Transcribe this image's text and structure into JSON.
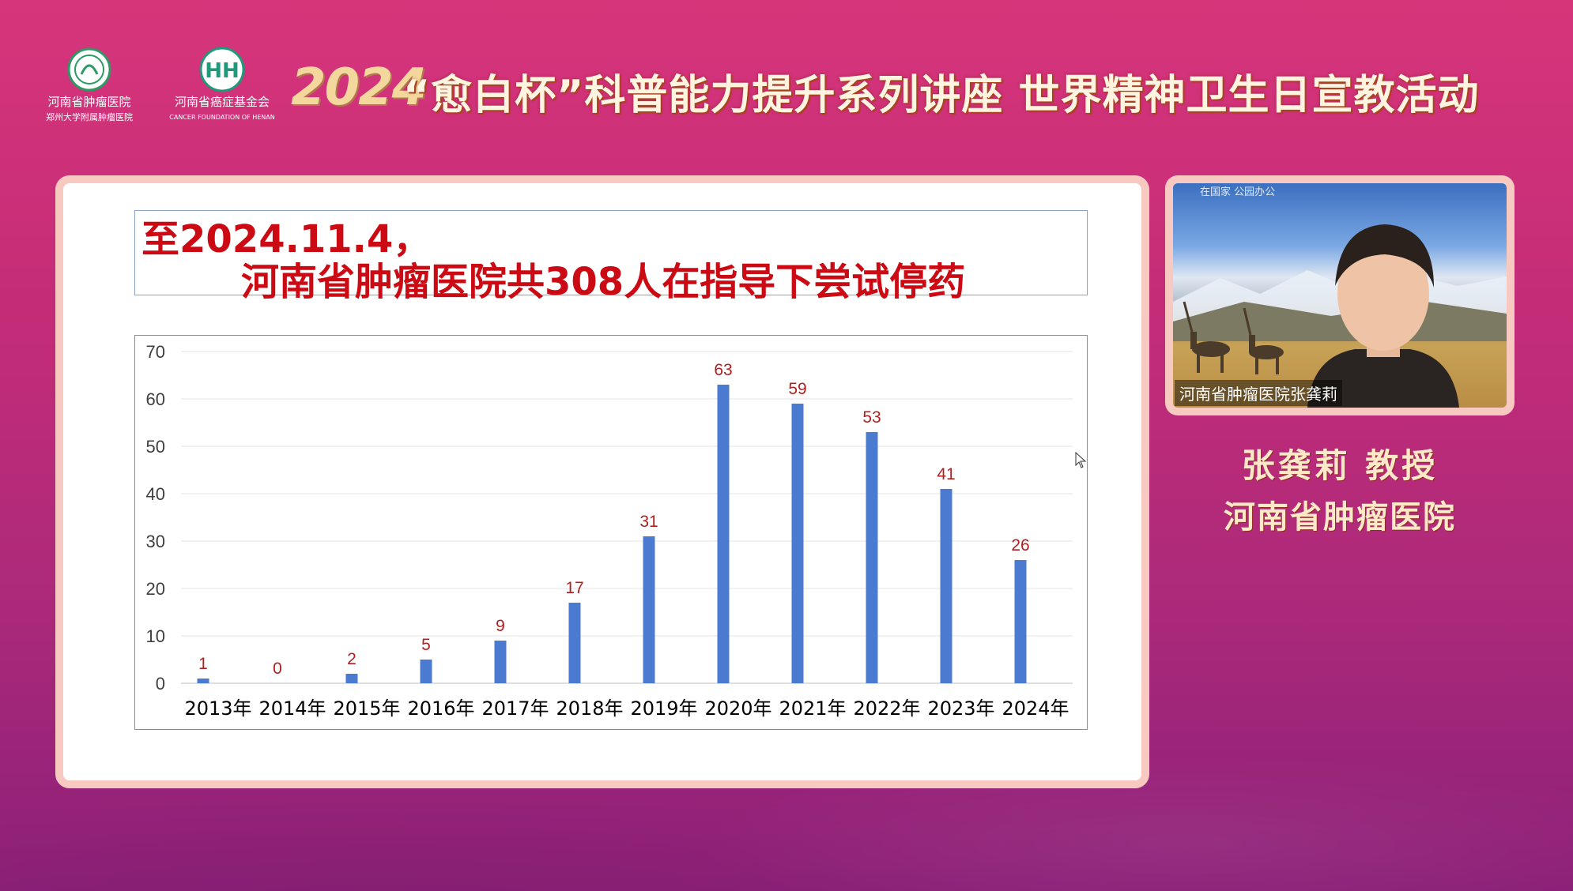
{
  "header": {
    "logo_hospital_text": "河南省肿瘤医院",
    "logo_hospital_sub": "郑州大学附属肿瘤医院",
    "logo_foundation_text": "河南省癌症基金会",
    "logo_foundation_sub": "CANCER FOUNDATION OF HENAN",
    "year": "2024",
    "title": "“愈白杯”科普能力提升系列讲座 世界精神卫生日宣教活动"
  },
  "slide": {
    "headline_line1": "至2024.11.4，",
    "headline_line2": "河南省肿瘤医院共308人在指导下尝试停药"
  },
  "chart_data": {
    "type": "bar",
    "title": "",
    "xlabel": "",
    "ylabel": "",
    "categories": [
      "2013年",
      "2014年",
      "2015年",
      "2016年",
      "2017年",
      "2018年",
      "2019年",
      "2020年",
      "2021年",
      "2022年",
      "2023年",
      "2024年"
    ],
    "values": [
      1,
      0,
      2,
      5,
      9,
      17,
      31,
      63,
      59,
      53,
      41,
      26
    ],
    "ylim": [
      0,
      70
    ],
    "yticks": [
      0,
      10,
      20,
      30,
      40,
      50,
      60,
      70
    ],
    "grid": true,
    "legend": "none",
    "bar_color": "#4b7bd0",
    "label_color": "#b02020"
  },
  "speaker": {
    "video_label": "河南省肿瘤医院张龚莉",
    "video_watermark": "在国家 公园办公",
    "name": "张龚莉  教授",
    "org": "河南省肿瘤医院"
  },
  "colors": {
    "bg_top": "#d7357a",
    "bg_bottom": "#8c2078",
    "frame": "#f7c9c1",
    "headline": "#cc0a14"
  }
}
